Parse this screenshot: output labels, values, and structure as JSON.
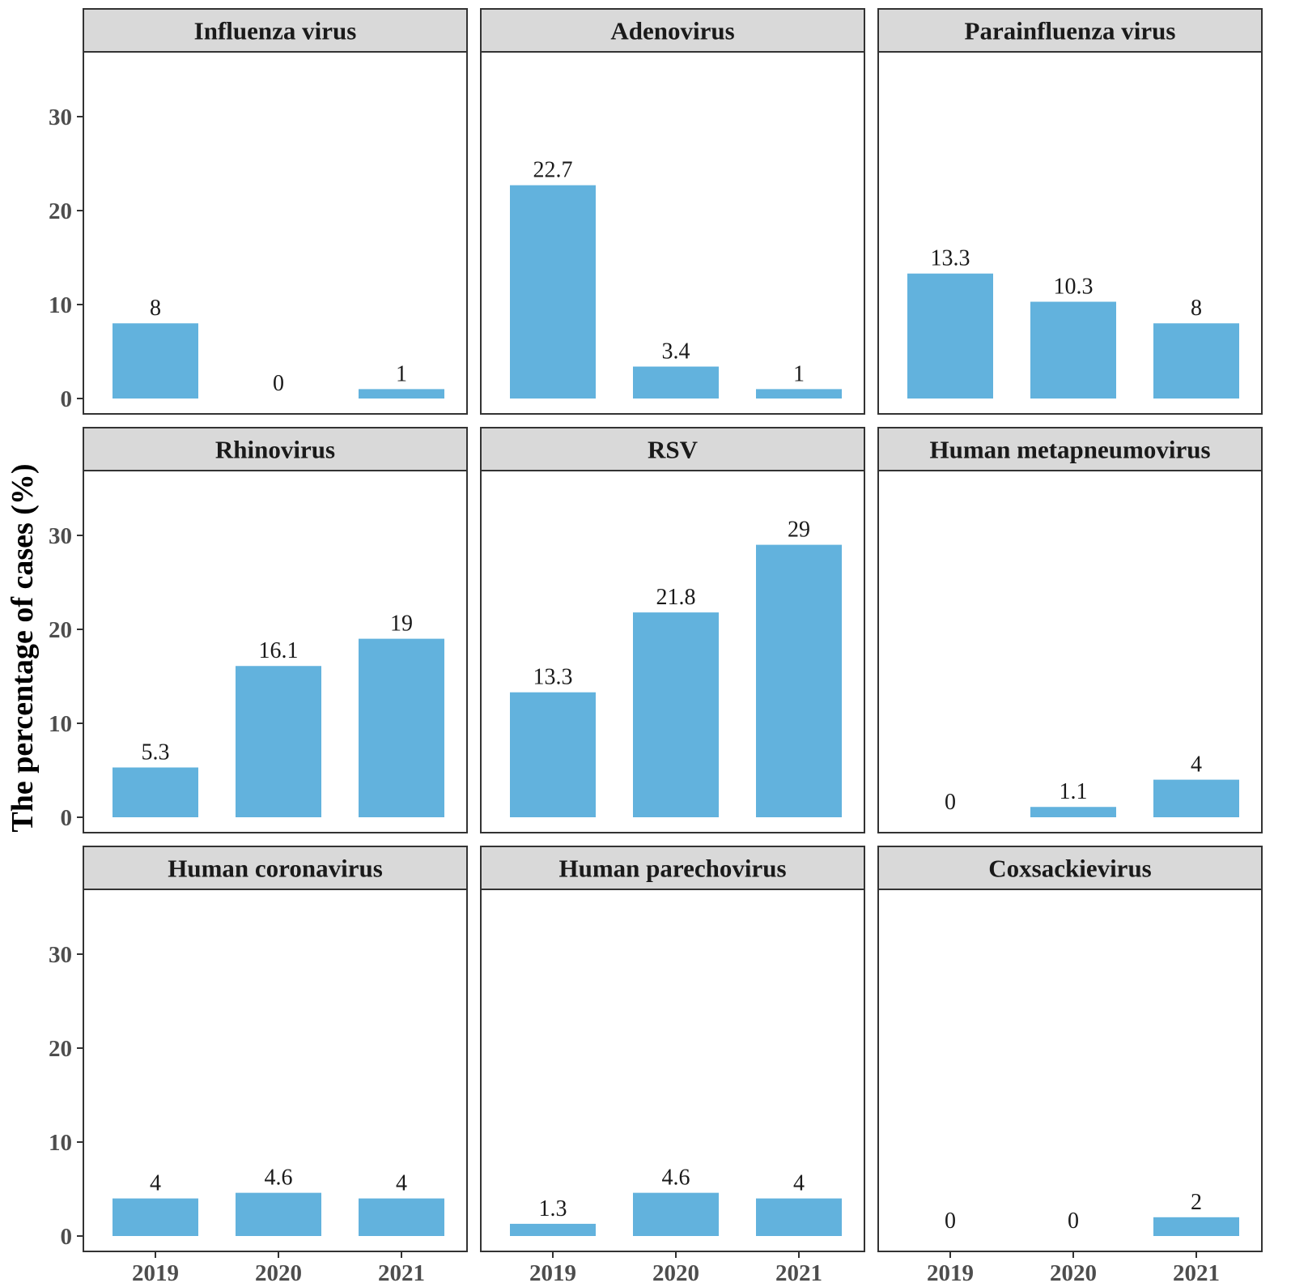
{
  "chart_data": {
    "type": "bar",
    "layout": "facet-grid-3x3",
    "ylabel": "The percentage of cases (%)",
    "xlabel": "",
    "categories": [
      "2019",
      "2020",
      "2021"
    ],
    "ylim": [
      0,
      37
    ],
    "yticks": [
      0,
      10,
      20,
      30
    ],
    "grid": false,
    "bar_color": "#62b2dd",
    "strip_color": "#d9d9d9",
    "panels": [
      {
        "title": "Influenza virus",
        "values": [
          8,
          0,
          1
        ],
        "labels": [
          "8",
          "0",
          "1"
        ]
      },
      {
        "title": "Adenovirus",
        "values": [
          22.7,
          3.4,
          1
        ],
        "labels": [
          "22.7",
          "3.4",
          "1"
        ]
      },
      {
        "title": "Parainfluenza virus",
        "values": [
          13.3,
          10.3,
          8
        ],
        "labels": [
          "13.3",
          "10.3",
          "8"
        ]
      },
      {
        "title": "Rhinovirus",
        "values": [
          5.3,
          16.1,
          19
        ],
        "labels": [
          "5.3",
          "16.1",
          "19"
        ]
      },
      {
        "title": "RSV",
        "values": [
          13.3,
          21.8,
          29
        ],
        "labels": [
          "13.3",
          "21.8",
          "29"
        ]
      },
      {
        "title": "Human metapneumovirus",
        "values": [
          0,
          1.1,
          4
        ],
        "labels": [
          "0",
          "1.1",
          "4"
        ]
      },
      {
        "title": "Human coronavirus",
        "values": [
          4,
          4.6,
          4
        ],
        "labels": [
          "4",
          "4.6",
          "4"
        ]
      },
      {
        "title": "Human parechovirus",
        "values": [
          1.3,
          4.6,
          4
        ],
        "labels": [
          "1.3",
          "4.6",
          "4"
        ]
      },
      {
        "title": "Coxsackievirus",
        "values": [
          0,
          0,
          2
        ],
        "labels": [
          "0",
          "0",
          "2"
        ]
      }
    ]
  }
}
